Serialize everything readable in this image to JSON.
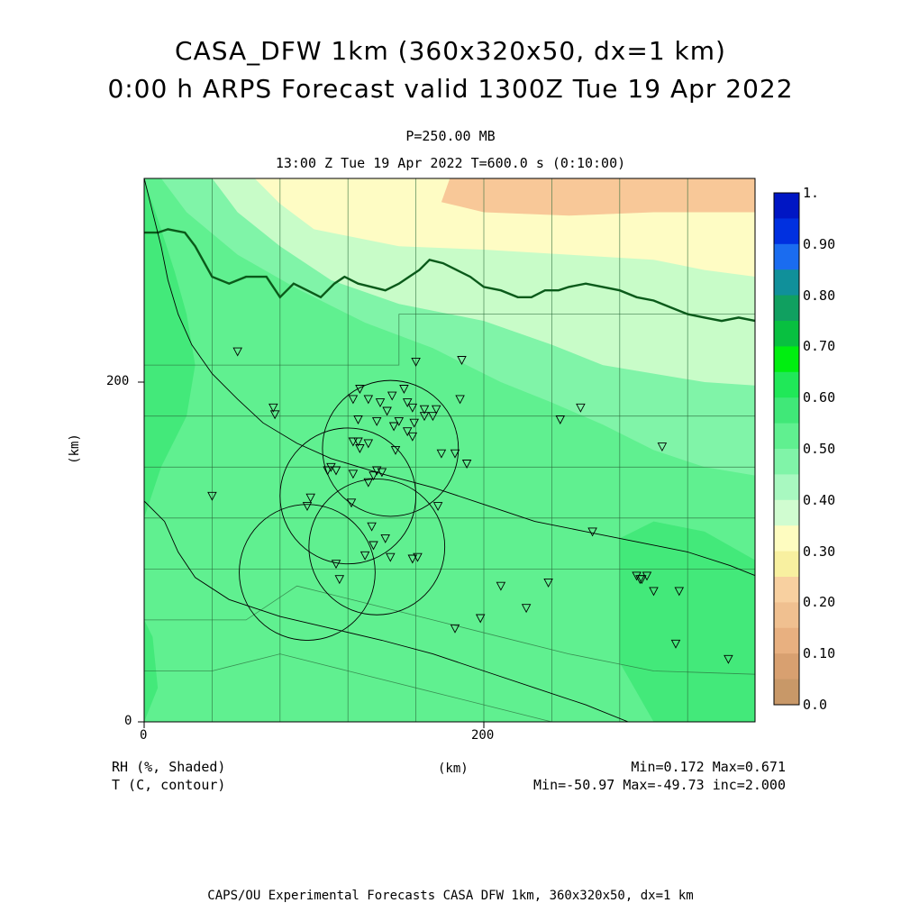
{
  "header": {
    "title_line1": "CASA_DFW 1km (360x320x50, dx=1 km)",
    "title_line2": "0:00 h ARPS Forecast valid 1300Z Tue 19 Apr 2022",
    "level": "P=250.00 MB",
    "time_line": "13:00 Z Tue 19 Apr 2022   T=600.0 s (0:10:00)"
  },
  "axes": {
    "y_unit": "(km)",
    "x_unit": "(km)",
    "x_ticks": [
      "0",
      "200"
    ],
    "y_ticks": [
      "0",
      "200"
    ]
  },
  "colorbar": {
    "labels": [
      "1.",
      "0.90",
      "0.80",
      "0.70",
      "0.60",
      "0.50",
      "0.40",
      "0.30",
      "0.20",
      "0.10",
      "0.0"
    ],
    "colors": [
      "#0016c4",
      "#0030e0",
      "#1a6cf0",
      "#10909a",
      "#10a060",
      "#08c040",
      "#00ee10",
      "#20e858",
      "#40e878",
      "#60f090",
      "#80f4a8",
      "#a8f8c0",
      "#d0fcd0",
      "#fefcc0",
      "#f8f0a0",
      "#f8d0a0",
      "#f0c090",
      "#e8b080",
      "#d8a070",
      "#c89868"
    ]
  },
  "footer": {
    "field1": "RH (%, Shaded)",
    "field2": "T (C, contour)",
    "center_unit": "(km)",
    "stats1": "Min=0.172 Max=0.671",
    "stats2": "Min=-50.97 Max=-49.73 inc=2.000",
    "credit": "CAPS/OU Experimental Forecasts  CASA DFW 1km, 360x320x50, dx=1 km"
  },
  "map_colors": {
    "frame": "#000000",
    "county_lines": "#2a6a3a",
    "state_line": "#0a5a1a",
    "contour": "#000000"
  },
  "map_data": {
    "stations": [
      [
        55,
        218
      ],
      [
        160,
        212
      ],
      [
        187,
        213
      ],
      [
        76,
        185
      ],
      [
        77,
        181
      ],
      [
        127,
        196
      ],
      [
        153,
        196
      ],
      [
        123,
        190
      ],
      [
        146,
        192
      ],
      [
        132,
        190
      ],
      [
        186,
        190
      ],
      [
        139,
        188
      ],
      [
        155,
        188
      ],
      [
        158,
        185
      ],
      [
        165,
        184
      ],
      [
        172,
        184
      ],
      [
        143,
        183
      ],
      [
        126,
        178
      ],
      [
        137,
        177
      ],
      [
        150,
        177
      ],
      [
        165,
        180
      ],
      [
        170,
        180
      ],
      [
        159,
        176
      ],
      [
        147,
        174
      ],
      [
        123,
        165
      ],
      [
        126,
        165
      ],
      [
        132,
        164
      ],
      [
        158,
        168
      ],
      [
        155,
        171
      ],
      [
        127,
        161
      ],
      [
        183,
        158
      ],
      [
        190,
        152
      ],
      [
        175,
        158
      ],
      [
        148,
        160
      ],
      [
        108,
        148
      ],
      [
        110,
        150
      ],
      [
        123,
        146
      ],
      [
        135,
        145
      ],
      [
        137,
        148
      ],
      [
        140,
        147
      ],
      [
        113,
        148
      ],
      [
        132,
        141
      ],
      [
        40,
        133
      ],
      [
        98,
        132
      ],
      [
        122,
        129
      ],
      [
        96,
        127
      ],
      [
        173,
        127
      ],
      [
        245,
        178
      ],
      [
        257,
        185
      ],
      [
        305,
        162
      ],
      [
        264,
        112
      ],
      [
        134,
        115
      ],
      [
        135,
        104
      ],
      [
        142,
        108
      ],
      [
        158,
        96
      ],
      [
        145,
        97
      ],
      [
        130,
        98
      ],
      [
        113,
        93
      ],
      [
        161,
        97
      ],
      [
        115,
        84
      ],
      [
        210,
        80
      ],
      [
        198,
        61
      ],
      [
        183,
        55
      ],
      [
        225,
        67
      ],
      [
        238,
        82
      ],
      [
        290,
        86
      ],
      [
        292,
        84
      ],
      [
        296,
        86
      ],
      [
        293,
        84
      ],
      [
        300,
        77
      ],
      [
        315,
        77
      ],
      [
        313,
        46
      ],
      [
        344,
        37
      ]
    ],
    "range_rings": [
      [
        145,
        161,
        40
      ],
      [
        120,
        133,
        40
      ],
      [
        96,
        88,
        40
      ],
      [
        137,
        103,
        40
      ]
    ],
    "rh_bands": [
      {
        "rh": 0.2,
        "pts": [
          [
            180,
            320
          ],
          [
            175,
            306
          ],
          [
            200,
            300
          ],
          [
            250,
            298
          ],
          [
            300,
            300
          ],
          [
            360,
            300
          ],
          [
            360,
            320
          ]
        ]
      },
      {
        "rh": 0.3,
        "pts": [
          [
            65,
            320
          ],
          [
            80,
            305
          ],
          [
            100,
            290
          ],
          [
            150,
            280
          ],
          [
            200,
            278
          ],
          [
            250,
            275
          ],
          [
            300,
            272
          ],
          [
            330,
            266
          ],
          [
            360,
            262
          ],
          [
            360,
            320
          ]
        ]
      },
      {
        "rh": 0.4,
        "pts": [
          [
            40,
            320
          ],
          [
            55,
            300
          ],
          [
            80,
            280
          ],
          [
            110,
            260
          ],
          [
            150,
            246
          ],
          [
            200,
            236
          ],
          [
            240,
            222
          ],
          [
            270,
            210
          ],
          [
            300,
            205
          ],
          [
            330,
            200
          ],
          [
            360,
            198
          ],
          [
            360,
            320
          ]
        ]
      },
      {
        "rh": 0.5,
        "pts": [
          [
            10,
            320
          ],
          [
            25,
            300
          ],
          [
            55,
            275
          ],
          [
            90,
            255
          ],
          [
            130,
            235
          ],
          [
            170,
            220
          ],
          [
            210,
            200
          ],
          [
            240,
            188
          ],
          [
            270,
            175
          ],
          [
            300,
            160
          ],
          [
            330,
            150
          ],
          [
            360,
            145
          ],
          [
            360,
            320
          ]
        ]
      }
    ],
    "rh_dark_patches": [
      {
        "rh": 0.6,
        "pts": [
          [
            0,
            320
          ],
          [
            10,
            290
          ],
          [
            18,
            265
          ],
          [
            25,
            240
          ],
          [
            30,
            210
          ],
          [
            25,
            180
          ],
          [
            10,
            150
          ],
          [
            0,
            120
          ]
        ]
      },
      {
        "rh": 0.6,
        "pts": [
          [
            280,
            108
          ],
          [
            300,
            118
          ],
          [
            330,
            112
          ],
          [
            360,
            95
          ],
          [
            360,
            0
          ],
          [
            300,
            0
          ],
          [
            280,
            35
          ],
          [
            280,
            80
          ]
        ]
      },
      {
        "rh": 0.6,
        "pts": [
          [
            0,
            0
          ],
          [
            8,
            20
          ],
          [
            5,
            50
          ],
          [
            0,
            60
          ]
        ]
      }
    ],
    "temp_contours": [
      [
        [
          0,
          320
        ],
        [
          5,
          300
        ],
        [
          10,
          280
        ],
        [
          14,
          260
        ],
        [
          20,
          240
        ],
        [
          28,
          222
        ],
        [
          40,
          205
        ],
        [
          55,
          190
        ],
        [
          70,
          176
        ],
        [
          90,
          164
        ],
        [
          110,
          155
        ],
        [
          140,
          146
        ],
        [
          170,
          138
        ],
        [
          200,
          128
        ],
        [
          230,
          118
        ],
        [
          260,
          112
        ],
        [
          290,
          106
        ],
        [
          320,
          100
        ],
        [
          345,
          92
        ],
        [
          360,
          86
        ]
      ],
      [
        [
          0,
          130
        ],
        [
          12,
          118
        ],
        [
          20,
          100
        ],
        [
          30,
          85
        ],
        [
          50,
          72
        ],
        [
          80,
          62
        ],
        [
          110,
          55
        ],
        [
          140,
          48
        ],
        [
          170,
          40
        ],
        [
          200,
          30
        ],
        [
          230,
          20
        ],
        [
          260,
          10
        ],
        [
          285,
          0
        ]
      ]
    ],
    "state_line": [
      [
        0,
        288
      ],
      [
        8,
        288
      ],
      [
        14,
        290
      ],
      [
        24,
        288
      ],
      [
        30,
        280
      ],
      [
        40,
        262
      ],
      [
        50,
        258
      ],
      [
        60,
        262
      ],
      [
        72,
        262
      ],
      [
        80,
        250
      ],
      [
        88,
        258
      ],
      [
        96,
        254
      ],
      [
        104,
        250
      ],
      [
        112,
        258
      ],
      [
        118,
        262
      ],
      [
        126,
        258
      ],
      [
        134,
        256
      ],
      [
        142,
        254
      ],
      [
        150,
        258
      ],
      [
        156,
        262
      ],
      [
        162,
        266
      ],
      [
        168,
        272
      ],
      [
        176,
        270
      ],
      [
        184,
        266
      ],
      [
        192,
        262
      ],
      [
        200,
        256
      ],
      [
        210,
        254
      ],
      [
        220,
        250
      ],
      [
        228,
        250
      ],
      [
        236,
        254
      ],
      [
        244,
        254
      ],
      [
        250,
        256
      ],
      [
        260,
        258
      ],
      [
        270,
        256
      ],
      [
        280,
        254
      ],
      [
        290,
        250
      ],
      [
        300,
        248
      ],
      [
        310,
        244
      ],
      [
        320,
        240
      ],
      [
        330,
        238
      ],
      [
        340,
        236
      ],
      [
        350,
        238
      ],
      [
        360,
        236
      ]
    ],
    "county_lines": [
      [
        [
          0,
          210
        ],
        [
          150,
          210
        ],
        [
          150,
          240
        ],
        [
          360,
          240
        ]
      ],
      [
        [
          0,
          180
        ],
        [
          360,
          180
        ]
      ],
      [
        [
          0,
          150
        ],
        [
          360,
          150
        ]
      ],
      [
        [
          0,
          120
        ],
        [
          360,
          120
        ]
      ],
      [
        [
          0,
          90
        ],
        [
          360,
          90
        ]
      ],
      [
        [
          40,
          0
        ],
        [
          40,
          320
        ]
      ],
      [
        [
          80,
          0
        ],
        [
          80,
          320
        ]
      ],
      [
        [
          120,
          0
        ],
        [
          120,
          320
        ]
      ],
      [
        [
          160,
          0
        ],
        [
          160,
          320
        ]
      ],
      [
        [
          200,
          0
        ],
        [
          200,
          320
        ]
      ],
      [
        [
          240,
          0
        ],
        [
          240,
          320
        ]
      ],
      [
        [
          280,
          0
        ],
        [
          280,
          320
        ]
      ],
      [
        [
          320,
          0
        ],
        [
          320,
          320
        ]
      ],
      [
        [
          0,
          60
        ],
        [
          60,
          60
        ],
        [
          90,
          80
        ],
        [
          130,
          70
        ],
        [
          170,
          60
        ],
        [
          210,
          50
        ],
        [
          250,
          40
        ],
        [
          300,
          30
        ],
        [
          360,
          28
        ]
      ],
      [
        [
          0,
          30
        ],
        [
          40,
          30
        ],
        [
          80,
          40
        ],
        [
          120,
          30
        ],
        [
          160,
          20
        ],
        [
          200,
          10
        ],
        [
          240,
          0
        ]
      ]
    ]
  }
}
